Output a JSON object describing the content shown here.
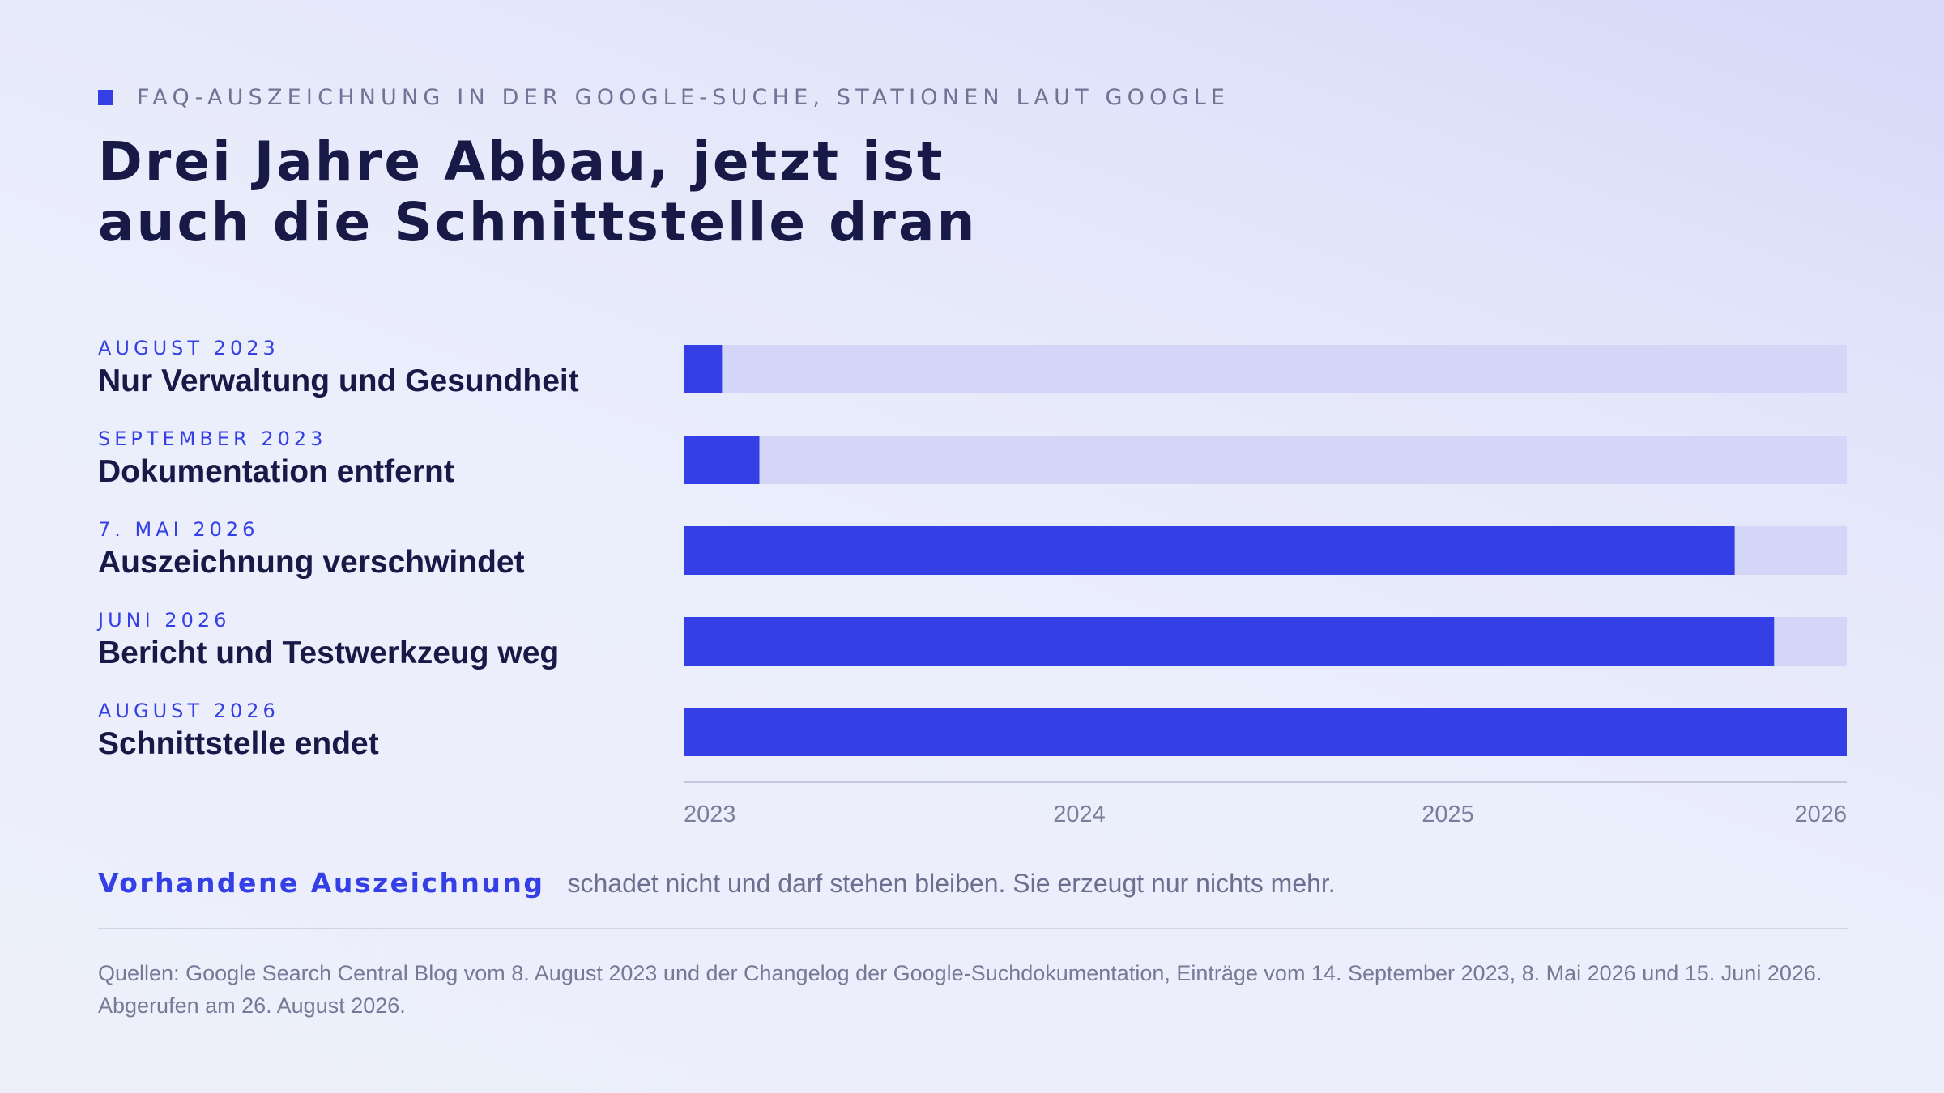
{
  "kicker": "FAQ-AUSZEICHNUNG IN DER GOOGLE-SUCHE, STATIONEN LAUT GOOGLE",
  "headline": {
    "line1": "Drei Jahre Abbau, jetzt ist",
    "line2": "auch die Schnittstelle dran"
  },
  "colors": {
    "accent": "#3440e6",
    "track": "#d3d6f7",
    "text": "#171a47",
    "muted": "#6c7090"
  },
  "chart_data": {
    "type": "bar",
    "orientation": "horizontal",
    "categories": [
      "Nur Verwaltung und Gesundheit",
      "Dokumentation entfernt",
      "Auszeichnung verschwindet",
      "Bericht und Testwerkzeug weg",
      "Schnittstelle endet"
    ],
    "category_dates": [
      "AUGUST 2023",
      "SEPTEMBER 2023",
      "7. MAI 2026",
      "JUNI 2026",
      "AUGUST 2026"
    ],
    "values": [
      "2023-08-08",
      "2023-09-14",
      "2026-05-07",
      "2026-06-15",
      "2026-08-26"
    ],
    "xlim": [
      "2023-07-01",
      "2026-08-26"
    ],
    "xticks": [
      {
        "date": "2023-07-01",
        "label": "2023"
      },
      {
        "date": "2024-07-01",
        "label": "2024"
      },
      {
        "date": "2025-07-01",
        "label": "2025"
      },
      {
        "date": "2026-08-26",
        "label": "2026"
      }
    ],
    "grid": false,
    "legend": "none"
  },
  "footer": {
    "highlight": "Vorhandene Auszeichnung",
    "text": "schadet nicht und darf stehen bleiben. Sie erzeugt nur nichts mehr."
  },
  "sources": "Quellen: Google Search Central Blog vom 8. August 2023 und der Changelog der Google-Suchdokumentation, Einträge vom 14. September 2023, 8. Mai 2026 und 15. Juni 2026. Abgerufen am 26. August 2026."
}
